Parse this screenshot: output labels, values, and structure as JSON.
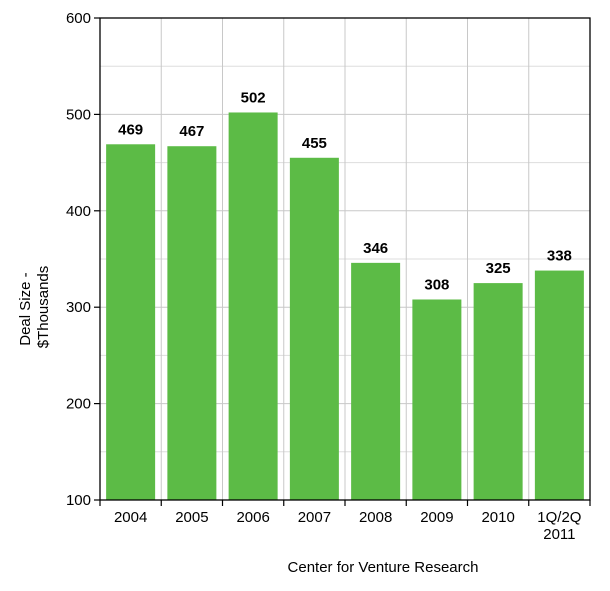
{
  "chart_data": {
    "type": "bar",
    "categories": [
      "2004",
      "2005",
      "2006",
      "2007",
      "2008",
      "2009",
      "2010",
      "1Q/2Q 2011"
    ],
    "category_lines": [
      [
        "2004"
      ],
      [
        "2005"
      ],
      [
        "2006"
      ],
      [
        "2007"
      ],
      [
        "2008"
      ],
      [
        "2009"
      ],
      [
        "2010"
      ],
      [
        "1Q/2Q",
        "2011"
      ]
    ],
    "values": [
      469,
      467,
      502,
      455,
      346,
      308,
      325,
      338
    ],
    "data_labels": [
      "469",
      "467",
      "502",
      "455",
      "346",
      "308",
      "325",
      "338"
    ],
    "title": "",
    "xlabel": "Center for Venture Research",
    "ylabel": "Deal Size - $Thousands",
    "ylabel_lines": [
      "Deal Size -",
      "$Thousands"
    ],
    "ylim": [
      100,
      600
    ],
    "yticks": [
      100,
      200,
      300,
      400,
      500,
      600
    ],
    "ytick_labels": [
      "100",
      "200",
      "300",
      "400",
      "500",
      "600"
    ],
    "grid": true,
    "bar_color": "#5cbb46",
    "grid_color": "#c8c8c8",
    "border_color": "#000000"
  }
}
